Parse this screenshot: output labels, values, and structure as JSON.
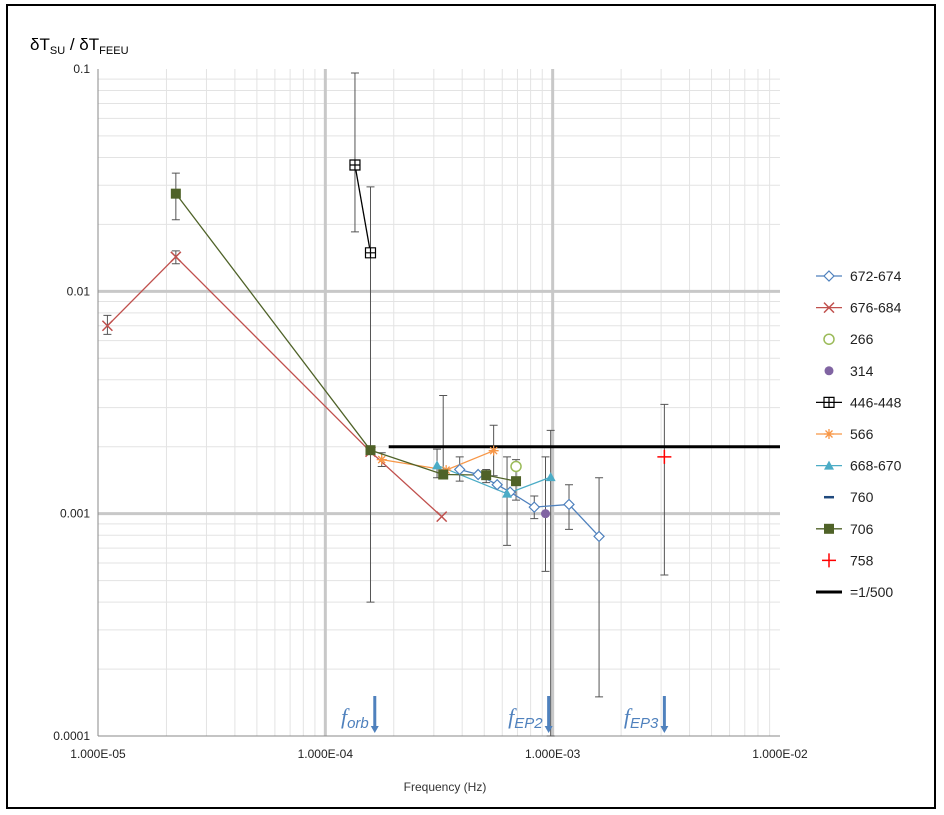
{
  "chart_data": {
    "type": "scatter",
    "title": "",
    "ylabel": "δT_SU / δT_FEEU",
    "ylabel_parts": {
      "sym": "δT",
      "sub1": "SU",
      "sep": " / δT",
      "sub2": "FEEU"
    },
    "xlabel": "Frequency (Hz)",
    "x_scale": "log",
    "y_scale": "log",
    "xlim": [
      1e-05,
      0.01
    ],
    "ylim": [
      0.0001,
      0.1
    ],
    "x_tick_labels": [
      "1.000E-05",
      "1.000E-04",
      "1.000E-03",
      "1.000E-02"
    ],
    "y_tick_labels": [
      "0.0001",
      "0.001",
      "0.01",
      "0.1"
    ],
    "grid": true,
    "legend_position": "right",
    "series": [
      {
        "name": "672-674",
        "color": "#4f81bd",
        "marker": "diamond-open",
        "line": true,
        "points": [
          [
            0.00039,
            0.00158
          ],
          [
            0.00047,
            0.0015
          ],
          [
            0.00057,
            0.00135
          ],
          [
            0.00065,
            0.00125
          ],
          [
            0.00083,
            0.00107
          ],
          [
            0.00118,
            0.0011
          ],
          [
            0.0016,
            0.00079
          ]
        ],
        "errors": [
          [
            0.00039,
            0.0014,
            0.0018
          ],
          [
            0.00083,
            0.00095,
            0.0012
          ],
          [
            0.00118,
            0.00085,
            0.00135
          ],
          [
            0.0016,
            0.00015,
            0.00145
          ]
        ]
      },
      {
        "name": "676-684",
        "color": "#c0504d",
        "marker": "x",
        "line": true,
        "points": [
          [
            1.1e-05,
            0.007
          ],
          [
            2.2e-05,
            0.0143
          ],
          [
            0.000158,
            0.0019
          ],
          [
            0.000325,
            0.00097
          ]
        ],
        "errors": [
          [
            1.1e-05,
            0.0064,
            0.0078
          ],
          [
            2.2e-05,
            0.0133,
            0.0152
          ]
        ]
      },
      {
        "name": "266",
        "color": "#9bbb59",
        "marker": "circle-open",
        "line": false,
        "points": [
          [
            0.00069,
            0.00163
          ]
        ],
        "errors": []
      },
      {
        "name": "314",
        "color": "#8064a2",
        "marker": "circle",
        "line": false,
        "points": [
          [
            0.00093,
            0.001
          ]
        ],
        "errors": [
          [
            0.00093,
            0.00055,
            0.0018
          ]
        ]
      },
      {
        "name": "446-448",
        "color": "#000000",
        "marker": "square-open",
        "line": true,
        "points": [
          [
            0.000135,
            0.037
          ],
          [
            0.000158,
            0.0149
          ]
        ],
        "errors": [
          [
            0.000135,
            0.0185,
            0.096
          ],
          [
            0.000158,
            0.0004,
            0.0295
          ]
        ]
      },
      {
        "name": "566",
        "color": "#f79646",
        "marker": "star",
        "line": true,
        "points": [
          [
            0.000177,
            0.00175
          ],
          [
            0.00034,
            0.00157
          ],
          [
            0.00055,
            0.00192
          ]
        ],
        "errors": [
          [
            0.000177,
            0.00163,
            0.00188
          ],
          [
            0.00055,
            0.00148,
            0.0025
          ]
        ]
      },
      {
        "name": "668-670",
        "color": "#4bacc6",
        "marker": "triangle",
        "line": true,
        "points": [
          [
            0.00031,
            0.00165
          ],
          [
            0.00063,
            0.00123
          ],
          [
            0.00098,
            0.00146
          ]
        ],
        "errors": [
          [
            0.00031,
            0.00145,
            0.00195
          ],
          [
            0.00063,
            0.00072,
            0.0018
          ],
          [
            0.00098,
            0.0001,
            0.00237
          ]
        ]
      },
      {
        "name": "760",
        "color": "#1f497d",
        "marker": "dash",
        "line": false,
        "points": [],
        "errors": []
      },
      {
        "name": "706",
        "color": "#4f6228",
        "marker": "square",
        "line": true,
        "points": [
          [
            2.2e-05,
            0.0275
          ],
          [
            0.000158,
            0.00193
          ],
          [
            0.00033,
            0.0015
          ],
          [
            0.00051,
            0.00149
          ],
          [
            0.00069,
            0.0014
          ]
        ],
        "errors": [
          [
            2.2e-05,
            0.021,
            0.034
          ],
          [
            0.00033,
            0.00145,
            0.0034
          ],
          [
            0.00051,
            0.00138,
            0.00158
          ],
          [
            0.00069,
            0.00115,
            0.00175
          ]
        ]
      },
      {
        "name": "758",
        "color": "#ff0000",
        "marker": "plus",
        "line": false,
        "points": [
          [
            0.0031,
            0.0018
          ]
        ],
        "errors": [
          [
            0.0031,
            0.00053,
            0.0031
          ]
        ]
      },
      {
        "name": "=1/500",
        "color": "#000000",
        "marker": "none",
        "line": true,
        "points": [
          [
            0.00019,
            0.002
          ],
          [
            0.01,
            0.002
          ]
        ],
        "errors": []
      }
    ],
    "annotations": [
      {
        "label": "f",
        "sub": "orb",
        "x": 0.000165
      },
      {
        "label": "f",
        "sub": "EP2",
        "x": 0.00096
      },
      {
        "label": "f",
        "sub": "EP3",
        "x": 0.0031
      }
    ]
  }
}
